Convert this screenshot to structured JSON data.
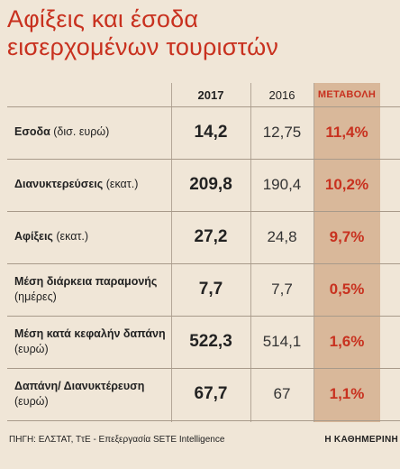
{
  "title": {
    "line1": "Αφίξεις και έσοδα",
    "line2": "εισερχομένων τουριστών"
  },
  "colors": {
    "title": "#c8311f",
    "background": "#f0e6d7",
    "highlight": "#d9b89a",
    "change_text": "#c8311f"
  },
  "chart_data": {
    "type": "table",
    "columns": [
      "2017",
      "2016",
      "ΜΕΤΑΒΟΛΗ"
    ],
    "rows": [
      {
        "label": "Εσοδα",
        "unit": " (δισ. ευρώ)",
        "unit_newline": false,
        "v2017": "14,2",
        "v2016": "12,75",
        "change": "11,4%"
      },
      {
        "label": "Διανυκτερεύσεις",
        "unit": " (εκατ.)",
        "unit_newline": false,
        "v2017": "209,8",
        "v2016": "190,4",
        "change": "10,2%"
      },
      {
        "label": "Αφίξεις",
        "unit": " (εκατ.)",
        "unit_newline": false,
        "v2017": "27,2",
        "v2016": "24,8",
        "change": "9,7%"
      },
      {
        "label": "Μέση διάρκεια παραμονής",
        "unit": "(ημέρες)",
        "unit_newline": true,
        "v2017": "7,7",
        "v2016": "7,7",
        "change": "0,5%"
      },
      {
        "label": "Μέση κατά κεφαλήν δαπάνη",
        "unit": "(ευρώ)",
        "unit_newline": true,
        "v2017": "522,3",
        "v2016": "514,1",
        "change": "1,6%"
      },
      {
        "label": "Δαπάνη/ Διανυκτέρευση",
        "unit": "(ευρώ)",
        "unit_newline": true,
        "v2017": "67,7",
        "v2016": "67",
        "change": "1,1%"
      }
    ]
  },
  "footer": {
    "source": "ΠΗΓΗ: ΕΛΣΤΑΤ, ΤτΕ - Επεξεργασία SETE Intelligence",
    "publisher": "Η ΚΑΘΗΜΕΡΙΝΗ"
  }
}
